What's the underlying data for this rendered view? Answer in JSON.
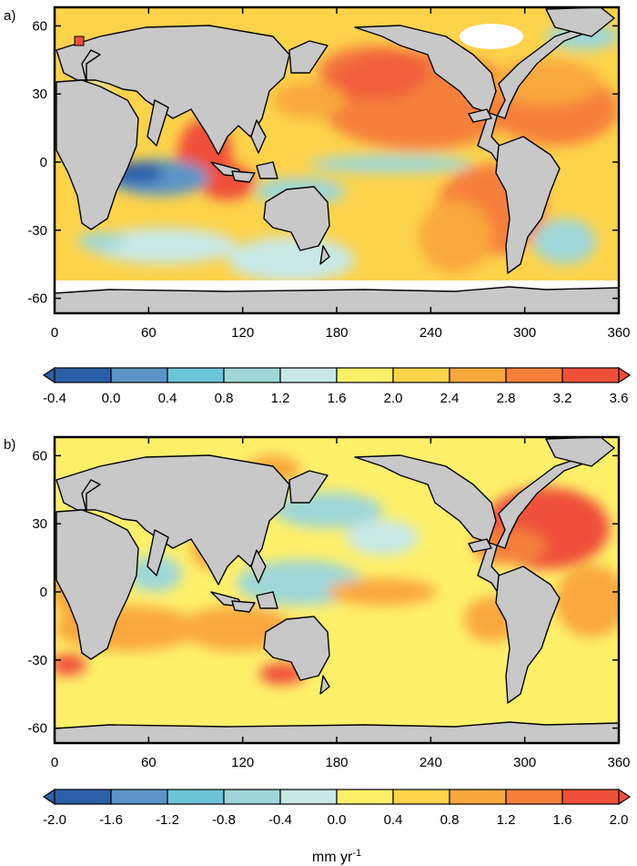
{
  "panels": [
    {
      "label": "a)",
      "x_ticks": [
        "0",
        "60",
        "120",
        "180",
        "240",
        "300",
        "360"
      ],
      "y_ticks": [
        "60",
        "30",
        "0",
        "-30",
        "-60"
      ],
      "colorbar": {
        "labels": [
          "-0.4",
          "0.0",
          "0.4",
          "0.8",
          "1.2",
          "1.6",
          "2.0",
          "2.4",
          "2.8",
          "3.2",
          "3.6"
        ],
        "unit": ""
      }
    },
    {
      "label": "b)",
      "x_ticks": [
        "0",
        "60",
        "120",
        "180",
        "240",
        "300",
        "360"
      ],
      "y_ticks": [
        "60",
        "30",
        "0",
        "-30",
        "-60"
      ],
      "colorbar": {
        "labels": [
          "-2.0",
          "-1.6",
          "-1.2",
          "-0.8",
          "-0.4",
          "0.0",
          "0.4",
          "0.8",
          "1.2",
          "1.6",
          "2.0"
        ],
        "unit": "mm yr",
        "unit_exponent": "-1"
      }
    }
  ],
  "colors": {
    "palette": [
      "#2b5fa8",
      "#5b95c8",
      "#6cc4d8",
      "#9fd7d8",
      "#c8e8e6",
      "#fff06a",
      "#fdd34a",
      "#f9a83c",
      "#f6803a",
      "#f0503a"
    ],
    "land": "#c8c8c8",
    "noData": "#ffffff",
    "frame": "#000000"
  }
}
